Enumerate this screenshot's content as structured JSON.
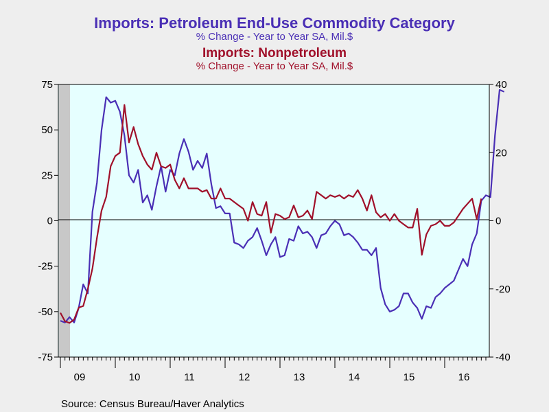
{
  "chart_data": {
    "type": "line",
    "titles": [
      {
        "title": "Imports: Petroleum End-Use Commodity Category",
        "subtitle": "% Change - Year to Year    SA, Mil.$",
        "color": "#4a2fb5"
      },
      {
        "title": "Imports: Nonpetroleum",
        "subtitle": "% Change - Year to Year    SA, Mil.$",
        "color": "#a0102a"
      }
    ],
    "source": "Source:  Census Bureau/Haver Analytics",
    "x_start": "2009-01",
    "x_tick_labels": [
      "09",
      "10",
      "11",
      "12",
      "13",
      "14",
      "15",
      "16"
    ],
    "recession_shading": {
      "from": "2009-01",
      "to": "2009-06"
    },
    "left_axis": {
      "ylim": [
        -75,
        75
      ],
      "ticks": [
        -75,
        -50,
        -25,
        0,
        25,
        50,
        75
      ]
    },
    "right_axis": {
      "ylim": [
        -40,
        40
      ],
      "ticks": [
        -40,
        -20,
        0,
        20,
        40
      ]
    },
    "grid": false,
    "zero_line": true,
    "series": [
      {
        "name": "Imports: Petroleum End-Use Commodity Category",
        "axis": "left",
        "color": "#4a2fb5",
        "values": [
          -55,
          -56,
          -53,
          -56,
          -48,
          -35,
          -40,
          5,
          21,
          50,
          68,
          65,
          66,
          60,
          47,
          25,
          21,
          28,
          10,
          14,
          6,
          19,
          30,
          16,
          28,
          25,
          37,
          45,
          38,
          28,
          33,
          29,
          37,
          20,
          7,
          8,
          4,
          4,
          -12,
          -13,
          -15,
          -11,
          -9,
          -4,
          -11,
          -19,
          -13,
          -9,
          -20,
          -19,
          -10,
          -11,
          -3,
          -7,
          -6,
          -9,
          -15,
          -8,
          -7,
          -3,
          0,
          -2,
          -8,
          -7,
          -9,
          -12,
          -16,
          -16,
          -19,
          -15,
          -37,
          -46,
          -50,
          -49,
          -47,
          -40,
          -40,
          -45,
          -48,
          -54,
          -47,
          -48,
          -42,
          -40,
          -37,
          -35,
          -33,
          -27,
          -21,
          -25,
          -13,
          -7,
          11,
          14,
          13,
          47,
          72,
          71
        ]
      },
      {
        "name": "Imports: Nonpetroleum",
        "axis": "right",
        "color": "#a0102a",
        "values": [
          -27,
          -29.5,
          -30,
          -29,
          -25.5,
          -25,
          -20,
          -14,
          -5,
          3,
          7,
          16,
          19,
          20,
          34,
          23,
          27.5,
          22.5,
          19,
          16.5,
          15,
          20,
          16,
          15.5,
          16.5,
          12,
          9.5,
          12.5,
          9.5,
          9.5,
          9.5,
          8.5,
          9,
          6.5,
          6.5,
          9.5,
          6.5,
          6.5,
          5.5,
          4.5,
          3.5,
          0,
          5.5,
          2,
          1.5,
          5.5,
          -3.5,
          2,
          1.5,
          0.5,
          1,
          4.5,
          1,
          1.5,
          3,
          0.5,
          8.5,
          7.5,
          6.5,
          7.5,
          7,
          7.5,
          6.5,
          7.5,
          7,
          9,
          6.5,
          3,
          7.5,
          2.5,
          1,
          2,
          0,
          2,
          0,
          -1,
          -2,
          -2,
          3.5,
          -10,
          -4,
          -1.5,
          -1,
          0,
          -1.5,
          -1.5,
          -0.5,
          1.5,
          3.5,
          5,
          6.5,
          0.5,
          6.5
        ]
      }
    ]
  }
}
